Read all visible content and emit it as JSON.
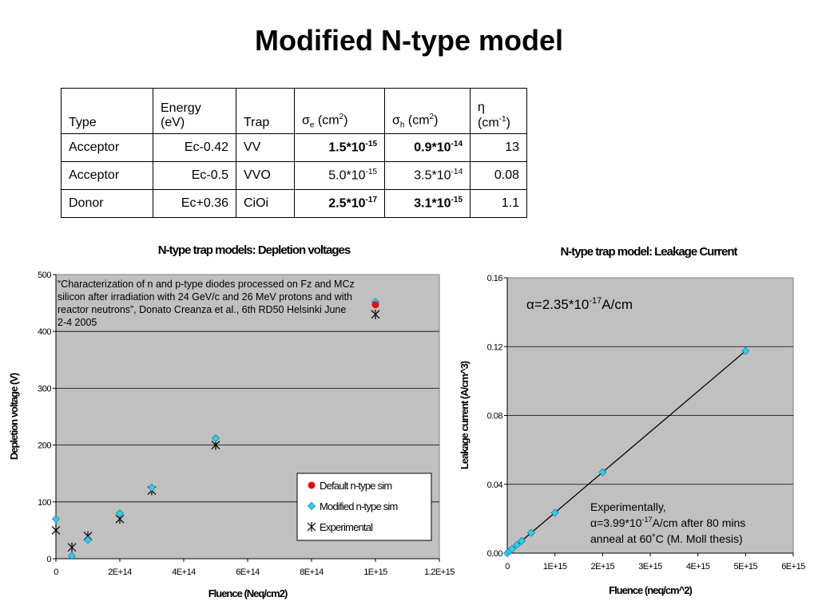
{
  "title": "Modified N-type model",
  "table": {
    "headers": {
      "type": "Type",
      "energy_l1": "Energy",
      "energy_l2": "(eV)",
      "trap": "Trap",
      "sigma_e": "σ",
      "sigma_e_sub": "e",
      "sigma_e_unit": " (cm",
      "sigma_sup": "2",
      "sigma_close": ")",
      "sigma_h": "σ",
      "sigma_h_sub": "h",
      "sigma_h_unit": " (cm",
      "eta_l1": "η",
      "eta_l2": "(cm",
      "eta_sup": "-1",
      "eta_close": ")"
    },
    "rows": [
      {
        "type": "Acceptor",
        "energy": "Ec-0.42",
        "trap": "VV",
        "se_mant": "1.5*10",
        "se_exp": "-15",
        "sh_mant": "0.9*10",
        "sh_exp": "-14",
        "eta": "13"
      },
      {
        "type": "Acceptor",
        "energy": "Ec-0.5",
        "trap": "VVO",
        "se_mant": "5.0*10",
        "se_exp": "-15",
        "sh_mant": "3.5*10",
        "sh_exp": "-14",
        "eta": "0.08"
      },
      {
        "type": "Donor",
        "energy": "Ec+0.36",
        "trap": "CiOi",
        "se_mant": "2.5*10",
        "se_exp": "-17",
        "sh_mant": "3.1*10",
        "sh_exp": "-15",
        "eta": "1.1"
      }
    ]
  },
  "chart_data": [
    {
      "type": "scatter",
      "title": "N-type trap models: Depletion voltages",
      "xlabel": "Fluence (Neq/cm2)",
      "ylabel": "Depletion voltage (V)",
      "xlim": [
        0,
        1200000000000000.0
      ],
      "ylim": [
        0,
        500
      ],
      "x_ticks": [
        0,
        200000000000000.0,
        400000000000000.0,
        600000000000000.0,
        800000000000000.0,
        1000000000000000.0,
        1200000000000000.0
      ],
      "x_tick_labels": [
        "0",
        "2E+14",
        "4E+14",
        "6E+14",
        "8E+14",
        "1E+15",
        "1.2E+15"
      ],
      "y_ticks": [
        0,
        100,
        200,
        300,
        400,
        500
      ],
      "y_tick_labels": [
        "0",
        "100",
        "200",
        "300",
        "400",
        "500"
      ],
      "grid": true,
      "legend_position": "bottom-right",
      "annotation": "“Characterization of n and p-type diodes processed on Fz and MCz silicon after irradiation with 24 GeV/c and 26 MeV protons and with reactor neutrons”, Donato Creanza et al., 6th RD50 Helsinki June 2-4 2005",
      "series": [
        {
          "name": "Default n-type sim",
          "marker": "circle",
          "color": "#e01010",
          "points": [
            [
              1000000000000000.0,
              447
            ]
          ]
        },
        {
          "name": "Modified n-type sim",
          "marker": "diamond",
          "color": "#33ccee",
          "points": [
            [
              0,
              70
            ],
            [
              50000000000000.0,
              5
            ],
            [
              100000000000000.0,
              33
            ],
            [
              200000000000000.0,
              80
            ],
            [
              300000000000000.0,
              125
            ],
            [
              500000000000000.0,
              212
            ],
            [
              1000000000000000.0,
              452
            ]
          ]
        },
        {
          "name": "Experimental",
          "marker": "star",
          "color": "#000000",
          "points": [
            [
              0,
              50
            ],
            [
              50000000000000.0,
              20
            ],
            [
              100000000000000.0,
              40
            ],
            [
              200000000000000.0,
              70
            ],
            [
              300000000000000.0,
              120
            ],
            [
              500000000000000.0,
              200
            ],
            [
              1000000000000000.0,
              430
            ]
          ]
        }
      ]
    },
    {
      "type": "line",
      "title": "N-type trap model: Leakage Current",
      "xlabel": "Fluence (neq/cm^2)",
      "ylabel": "Leakage current (A/cm^3)",
      "xlim": [
        0,
        6000000000000000.0
      ],
      "ylim": [
        0,
        0.16
      ],
      "x_ticks": [
        0,
        1000000000000000.0,
        2000000000000000.0,
        3000000000000000.0,
        4000000000000000.0,
        5000000000000000.0,
        6000000000000000.0
      ],
      "x_tick_labels": [
        "0",
        "1E+15",
        "2E+15",
        "3E+15",
        "4E+15",
        "5E+15",
        "6E+15"
      ],
      "y_ticks": [
        0,
        0.04,
        0.08,
        0.12,
        0.16
      ],
      "y_tick_labels": [
        "0.00",
        "0.04",
        "0.08",
        "0.12",
        "0.16"
      ],
      "grid": true,
      "alpha_label_main": "α=2.35*10",
      "alpha_label_exp": "-17",
      "alpha_label_unit": "A/cm",
      "note_line1": "Experimentally,",
      "note_line2_main": "α=3.99*10",
      "note_line2_exp": "-17",
      "note_line2_rest": "A/cm after 80 mins",
      "note_line3": "anneal at 60˚C (M. Moll thesis)",
      "series": [
        {
          "marker": "diamond",
          "color": "#33ccee",
          "points": [
            [
              0,
              0.0
            ],
            [
              50000000000000.0,
              0.0012
            ],
            [
              100000000000000.0,
              0.0024
            ],
            [
              200000000000000.0,
              0.0047
            ],
            [
              300000000000000.0,
              0.0071
            ],
            [
              500000000000000.0,
              0.0118
            ],
            [
              1000000000000000.0,
              0.0235
            ],
            [
              2000000000000000.0,
              0.047
            ],
            [
              5000000000000000.0,
              0.1175
            ]
          ]
        }
      ]
    }
  ]
}
